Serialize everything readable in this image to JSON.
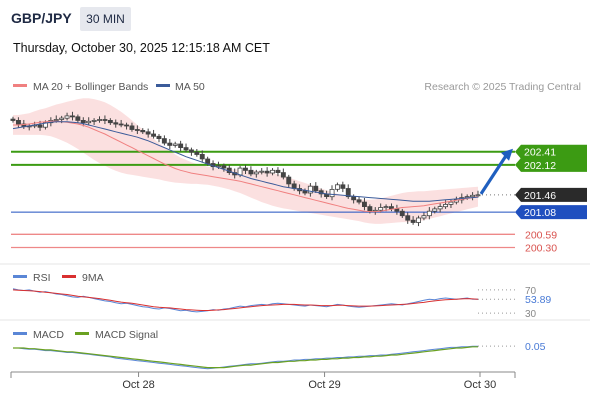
{
  "header": {
    "symbol": "GBP/JPY",
    "timeframe": "30 MIN",
    "datetime": "Thursday, October 30, 2025 12:15:18 AM CET"
  },
  "legend": {
    "bb_label": "MA 20 + Bollinger Bands",
    "ma50_label": "MA 50",
    "credit": "Research © 2025 Trading Central"
  },
  "colors": {
    "bb": "#f08080",
    "ma50": "#3b5b9a",
    "green": "#3c9b13",
    "blue": "#1f4fbf",
    "red": "#e05050",
    "candle": "#444444",
    "rsi": "#5a86d6",
    "rsi_ma": "#d93030",
    "macd": "#5a86d6",
    "signal": "#6aa121",
    "arrow": "#1f5fbf"
  },
  "chart_data": [
    {
      "type": "candlestick",
      "x_ticks": [
        "Oct 28",
        "Oct 29",
        "Oct 30"
      ],
      "ylim": [
        200.2,
        203.55
      ],
      "levels": [
        {
          "value": 202.41,
          "label": "202.41",
          "style": "green"
        },
        {
          "value": 202.12,
          "label": "202.12",
          "style": "green"
        },
        {
          "value": 201.46,
          "label": "201.46",
          "style": "current"
        },
        {
          "value": 201.08,
          "label": "201.08",
          "style": "blue"
        },
        {
          "value": 200.59,
          "label": "200.59",
          "style": "red"
        },
        {
          "value": 200.3,
          "label": "200.30",
          "style": "red"
        }
      ],
      "forecast_target": 202.41,
      "close": [
        203.1,
        203.02,
        202.96,
        202.98,
        203.0,
        202.95,
        203.05,
        203.1,
        203.12,
        203.15,
        203.2,
        203.18,
        203.1,
        203.05,
        203.08,
        203.1,
        203.12,
        203.1,
        203.05,
        203.02,
        203.0,
        202.98,
        202.9,
        202.88,
        202.85,
        202.8,
        202.75,
        202.7,
        202.6,
        202.55,
        202.58,
        202.5,
        202.45,
        202.4,
        202.35,
        202.25,
        202.15,
        202.08,
        202.1,
        202.05,
        201.95,
        201.9,
        202.05,
        202.0,
        201.92,
        201.96,
        201.98,
        201.94,
        202.0,
        201.95,
        201.85,
        201.7,
        201.6,
        201.55,
        201.5,
        201.65,
        201.55,
        201.48,
        201.42,
        201.58,
        201.68,
        201.6,
        201.42,
        201.35,
        201.3,
        201.2,
        201.1,
        201.12,
        201.18,
        201.2,
        201.15,
        201.1,
        201.0,
        200.9,
        200.85,
        200.95,
        201.0,
        201.1,
        201.15,
        201.2,
        201.25,
        201.3,
        201.35,
        201.4,
        201.42,
        201.45,
        201.46
      ],
      "ma50": [
        202.92,
        202.94,
        202.96,
        202.98,
        203.0,
        203.02,
        203.04,
        203.06,
        203.07,
        203.07,
        203.07,
        203.06,
        203.05,
        203.03,
        203.0,
        202.97,
        202.94,
        202.91,
        202.88,
        202.85,
        202.82,
        202.79,
        202.76,
        202.73,
        202.69,
        202.65,
        202.6,
        202.55,
        202.5,
        202.45,
        202.4,
        202.35,
        202.3,
        202.26,
        202.22,
        202.18,
        202.14,
        202.1,
        202.06,
        202.02,
        201.98,
        201.94,
        201.9,
        201.86,
        201.82,
        201.79,
        201.76,
        201.73,
        201.7,
        201.67,
        201.64,
        201.62,
        201.6,
        201.58,
        201.56,
        201.54,
        201.52,
        201.5,
        201.48,
        201.47,
        201.46,
        201.45,
        201.44,
        201.43,
        201.42,
        201.41,
        201.4,
        201.39,
        201.38,
        201.37,
        201.36,
        201.35,
        201.34,
        201.33,
        201.32,
        201.32,
        201.32,
        201.32,
        201.33,
        201.34,
        201.35,
        201.36,
        201.37,
        201.38,
        201.39,
        201.4,
        201.41
      ],
      "bb_mid": [
        203.0,
        203.0,
        203.01,
        203.02,
        203.04,
        203.06,
        203.07,
        203.08,
        203.08,
        203.07,
        203.06,
        203.04,
        203.02,
        202.99,
        202.95,
        202.9,
        202.85,
        202.8,
        202.74,
        202.68,
        202.62,
        202.56,
        202.5,
        202.44,
        202.38,
        202.32,
        202.26,
        202.2,
        202.14,
        202.09,
        202.04,
        202.0,
        201.97,
        201.94,
        201.92,
        201.9,
        201.88,
        201.86,
        201.84,
        201.82,
        201.8,
        201.78,
        201.76,
        201.73,
        201.7,
        201.67,
        201.64,
        201.61,
        201.58,
        201.55,
        201.52,
        201.49,
        201.46,
        201.43,
        201.4,
        201.37,
        201.34,
        201.31,
        201.28,
        201.25,
        201.22,
        201.19,
        201.16,
        201.14,
        201.12,
        201.1,
        201.09,
        201.09,
        201.1,
        201.12,
        201.14,
        201.16,
        201.18,
        201.19,
        201.2,
        201.21,
        201.22,
        201.24,
        201.26,
        201.28,
        201.3,
        201.32,
        201.34,
        201.36,
        201.38,
        201.4,
        201.42
      ],
      "bb_width": [
        0.22,
        0.22,
        0.23,
        0.24,
        0.26,
        0.28,
        0.3,
        0.33,
        0.37,
        0.41,
        0.45,
        0.5,
        0.55,
        0.6,
        0.64,
        0.67,
        0.69,
        0.7,
        0.7,
        0.69,
        0.67,
        0.64,
        0.6,
        0.56,
        0.52,
        0.48,
        0.44,
        0.4,
        0.37,
        0.34,
        0.31,
        0.28,
        0.26,
        0.24,
        0.22,
        0.21,
        0.2,
        0.2,
        0.2,
        0.21,
        0.22,
        0.24,
        0.26,
        0.28,
        0.3,
        0.32,
        0.34,
        0.35,
        0.36,
        0.36,
        0.36,
        0.35,
        0.34,
        0.33,
        0.32,
        0.31,
        0.3,
        0.29,
        0.28,
        0.27,
        0.26,
        0.25,
        0.24,
        0.24,
        0.24,
        0.25,
        0.26,
        0.27,
        0.28,
        0.29,
        0.3,
        0.31,
        0.32,
        0.33,
        0.33,
        0.33,
        0.32,
        0.31,
        0.3,
        0.29,
        0.28,
        0.27,
        0.26,
        0.25,
        0.24,
        0.23,
        0.22
      ]
    },
    {
      "type": "line",
      "name": "RSI",
      "series_names": [
        "RSI",
        "9MA"
      ],
      "ylim": [
        25,
        75
      ],
      "ticks": [
        {
          "value": 70,
          "label": "70"
        },
        {
          "value": 30,
          "label": "30"
        }
      ],
      "current_label": "53.89",
      "rsi": [
        72,
        70,
        69,
        70,
        68,
        66,
        67,
        65,
        63,
        62,
        60,
        58,
        57,
        59,
        57,
        55,
        53,
        51,
        50,
        48,
        46,
        47,
        45,
        43,
        41,
        40,
        38,
        37,
        39,
        38,
        36,
        34,
        35,
        33,
        32,
        33,
        34,
        36,
        35,
        37,
        38,
        40,
        42,
        41,
        43,
        44,
        45,
        44,
        46,
        47,
        46,
        45,
        44,
        43,
        42,
        44,
        43,
        42,
        41,
        43,
        45,
        44,
        42,
        41,
        40,
        41,
        42,
        43,
        44,
        45,
        46,
        45,
        44,
        46,
        48,
        50,
        52,
        54,
        53,
        55,
        56,
        55,
        54,
        55,
        56,
        54,
        53.89
      ],
      "rsi_ma": [
        70,
        69.5,
        69,
        68.5,
        68,
        67,
        66,
        65,
        64,
        63,
        62,
        60.5,
        59,
        58,
        57,
        56,
        55,
        53.5,
        52,
        50.5,
        49,
        48,
        47,
        45.5,
        44,
        42.5,
        41,
        40,
        39.5,
        39,
        38,
        37,
        36,
        35.5,
        35,
        34.5,
        34.5,
        35,
        35.5,
        36,
        37,
        38,
        39,
        40,
        41,
        42,
        43,
        43.5,
        44,
        44.5,
        45,
        45,
        45,
        44.5,
        44,
        44,
        43.5,
        43,
        43,
        43,
        43.5,
        43.5,
        43,
        42.5,
        42,
        42,
        42,
        42.5,
        43,
        43.5,
        44,
        44.5,
        45,
        45.5,
        46.5,
        47.5,
        48.5,
        50,
        51,
        52,
        53,
        53.5,
        54,
        54.5,
        55,
        54.5,
        54
      ]
    },
    {
      "type": "line",
      "name": "MACD",
      "series_names": [
        "MACD",
        "MACD Signal"
      ],
      "ylim": [
        -0.36,
        0.1
      ],
      "current_label": "0.05",
      "macd": [
        0.02,
        0.02,
        0.01,
        0.0,
        0.0,
        -0.01,
        -0.02,
        -0.02,
        -0.03,
        -0.04,
        -0.05,
        -0.05,
        -0.06,
        -0.07,
        -0.08,
        -0.09,
        -0.1,
        -0.11,
        -0.12,
        -0.14,
        -0.15,
        -0.16,
        -0.17,
        -0.18,
        -0.19,
        -0.2,
        -0.21,
        -0.22,
        -0.23,
        -0.24,
        -0.25,
        -0.26,
        -0.27,
        -0.28,
        -0.29,
        -0.3,
        -0.31,
        -0.3,
        -0.29,
        -0.28,
        -0.27,
        -0.26,
        -0.25,
        -0.24,
        -0.23,
        -0.23,
        -0.22,
        -0.21,
        -0.2,
        -0.19,
        -0.19,
        -0.18,
        -0.17,
        -0.17,
        -0.16,
        -0.16,
        -0.15,
        -0.15,
        -0.14,
        -0.14,
        -0.13,
        -0.13,
        -0.12,
        -0.12,
        -0.11,
        -0.11,
        -0.1,
        -0.1,
        -0.09,
        -0.09,
        -0.08,
        -0.07,
        -0.06,
        -0.05,
        -0.04,
        -0.03,
        -0.02,
        -0.01,
        0.0,
        0.01,
        0.02,
        0.03,
        0.03,
        0.04,
        0.04,
        0.05,
        0.05
      ],
      "signal": [
        0.02,
        0.02,
        0.02,
        0.01,
        0.01,
        0.0,
        -0.01,
        -0.01,
        -0.02,
        -0.03,
        -0.04,
        -0.04,
        -0.05,
        -0.06,
        -0.07,
        -0.08,
        -0.09,
        -0.1,
        -0.11,
        -0.12,
        -0.13,
        -0.14,
        -0.15,
        -0.16,
        -0.17,
        -0.18,
        -0.19,
        -0.2,
        -0.21,
        -0.22,
        -0.23,
        -0.24,
        -0.25,
        -0.26,
        -0.27,
        -0.28,
        -0.29,
        -0.29,
        -0.29,
        -0.29,
        -0.28,
        -0.27,
        -0.26,
        -0.25,
        -0.25,
        -0.24,
        -0.23,
        -0.22,
        -0.21,
        -0.21,
        -0.2,
        -0.19,
        -0.19,
        -0.18,
        -0.18,
        -0.17,
        -0.17,
        -0.16,
        -0.16,
        -0.15,
        -0.15,
        -0.14,
        -0.14,
        -0.13,
        -0.13,
        -0.12,
        -0.12,
        -0.11,
        -0.11,
        -0.1,
        -0.09,
        -0.09,
        -0.08,
        -0.07,
        -0.06,
        -0.05,
        -0.04,
        -0.03,
        -0.02,
        -0.01,
        0.0,
        0.01,
        0.02,
        0.02,
        0.03,
        0.04,
        0.04
      ]
    }
  ]
}
